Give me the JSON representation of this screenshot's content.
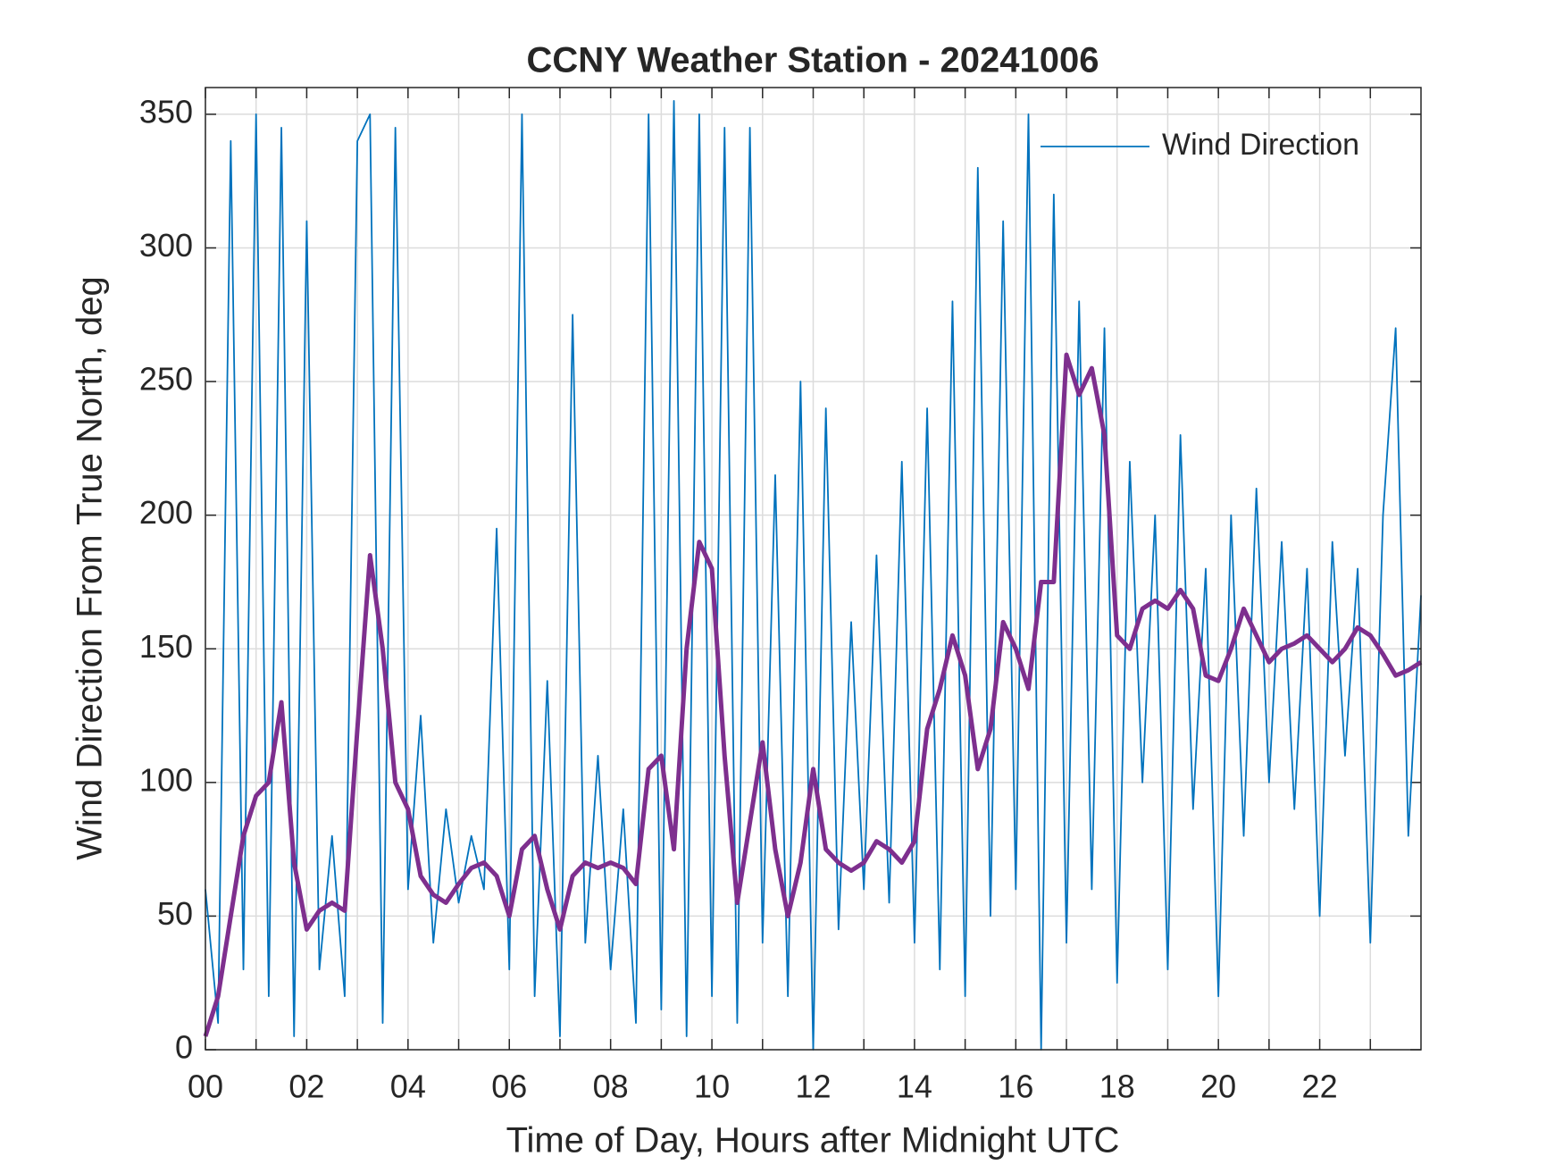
{
  "chart_data": {
    "type": "line",
    "title": "CCNY Weather Station - 20241006",
    "xlabel": "Time of Day, Hours after Midnight UTC",
    "ylabel": "Wind Direction From True North, deg",
    "x": [
      0,
      0.25,
      0.5,
      0.75,
      1,
      1.25,
      1.5,
      1.75,
      2,
      2.25,
      2.5,
      2.75,
      3,
      3.25,
      3.5,
      3.75,
      4,
      4.25,
      4.5,
      4.75,
      5,
      5.25,
      5.5,
      5.75,
      6,
      6.25,
      6.5,
      6.75,
      7,
      7.25,
      7.5,
      7.75,
      8,
      8.25,
      8.5,
      8.75,
      9,
      9.25,
      9.5,
      9.75,
      10,
      10.25,
      10.5,
      10.75,
      11,
      11.25,
      11.5,
      11.75,
      12,
      12.25,
      12.5,
      12.75,
      13,
      13.25,
      13.5,
      13.75,
      14,
      14.25,
      14.5,
      14.75,
      15,
      15.25,
      15.5,
      15.75,
      16,
      16.25,
      16.5,
      16.75,
      17,
      17.25,
      17.5,
      17.75,
      18,
      18.25,
      18.5,
      18.75,
      19,
      19.25,
      19.5,
      19.75,
      20,
      20.25,
      20.5,
      20.75,
      21,
      21.25,
      21.5,
      21.75,
      22,
      22.25,
      22.5,
      22.75,
      23,
      23.25,
      23.5,
      23.75,
      24
    ],
    "series": [
      {
        "name": "Wind Direction",
        "color": "#0072bd",
        "values": [
          60,
          10,
          340,
          30,
          350,
          20,
          345,
          5,
          310,
          30,
          80,
          20,
          340,
          350,
          10,
          345,
          60,
          125,
          40,
          90,
          55,
          80,
          60,
          195,
          30,
          350,
          20,
          138,
          5,
          275,
          40,
          110,
          30,
          90,
          10,
          350,
          15,
          355,
          5,
          350,
          20,
          345,
          10,
          345,
          40,
          215,
          20,
          250,
          0,
          240,
          45,
          160,
          60,
          185,
          55,
          220,
          40,
          240,
          30,
          280,
          20,
          330,
          50,
          310,
          60,
          350,
          0,
          320,
          40,
          280,
          60,
          270,
          25,
          220,
          100,
          200,
          30,
          230,
          90,
          180,
          20,
          200,
          80,
          210,
          100,
          190,
          90,
          180,
          50,
          190,
          110,
          180,
          40,
          200,
          270,
          80,
          170
        ]
      },
      {
        "color": "#7e2f8e",
        "values": [
          5,
          20,
          50,
          80,
          95,
          100,
          130,
          70,
          45,
          52,
          55,
          52,
          120,
          185,
          150,
          100,
          90,
          65,
          58,
          55,
          62,
          68,
          70,
          65,
          50,
          75,
          80,
          60,
          45,
          65,
          70,
          68,
          70,
          68,
          62,
          105,
          110,
          75,
          150,
          190,
          180,
          110,
          55,
          85,
          115,
          75,
          50,
          70,
          105,
          75,
          70,
          67,
          70,
          78,
          75,
          70,
          78,
          120,
          135,
          155,
          140,
          105,
          120,
          160,
          150,
          135,
          175,
          175,
          260,
          245,
          255,
          230,
          155,
          150,
          165,
          168,
          165,
          172,
          165,
          140,
          138,
          150,
          165,
          155,
          145,
          150,
          152,
          155,
          150,
          145,
          150,
          158,
          155,
          148,
          140,
          142,
          145
        ]
      }
    ],
    "xlim": [
      0,
      24
    ],
    "xticks": [
      {
        "value": 0,
        "label": "00"
      },
      {
        "value": 2,
        "label": "02"
      },
      {
        "value": 4,
        "label": "04"
      },
      {
        "value": 6,
        "label": "06"
      },
      {
        "value": 8,
        "label": "08"
      },
      10,
      12,
      14,
      16,
      18,
      20,
      22
    ],
    "xminorticks": [
      1,
      3,
      5,
      7,
      9,
      11,
      13,
      15,
      17,
      19,
      21,
      23
    ],
    "ylim": [
      0,
      360
    ],
    "yticks": [
      0,
      50,
      100,
      150,
      200,
      250,
      300,
      350
    ],
    "grid": true,
    "legend": "upper right"
  }
}
